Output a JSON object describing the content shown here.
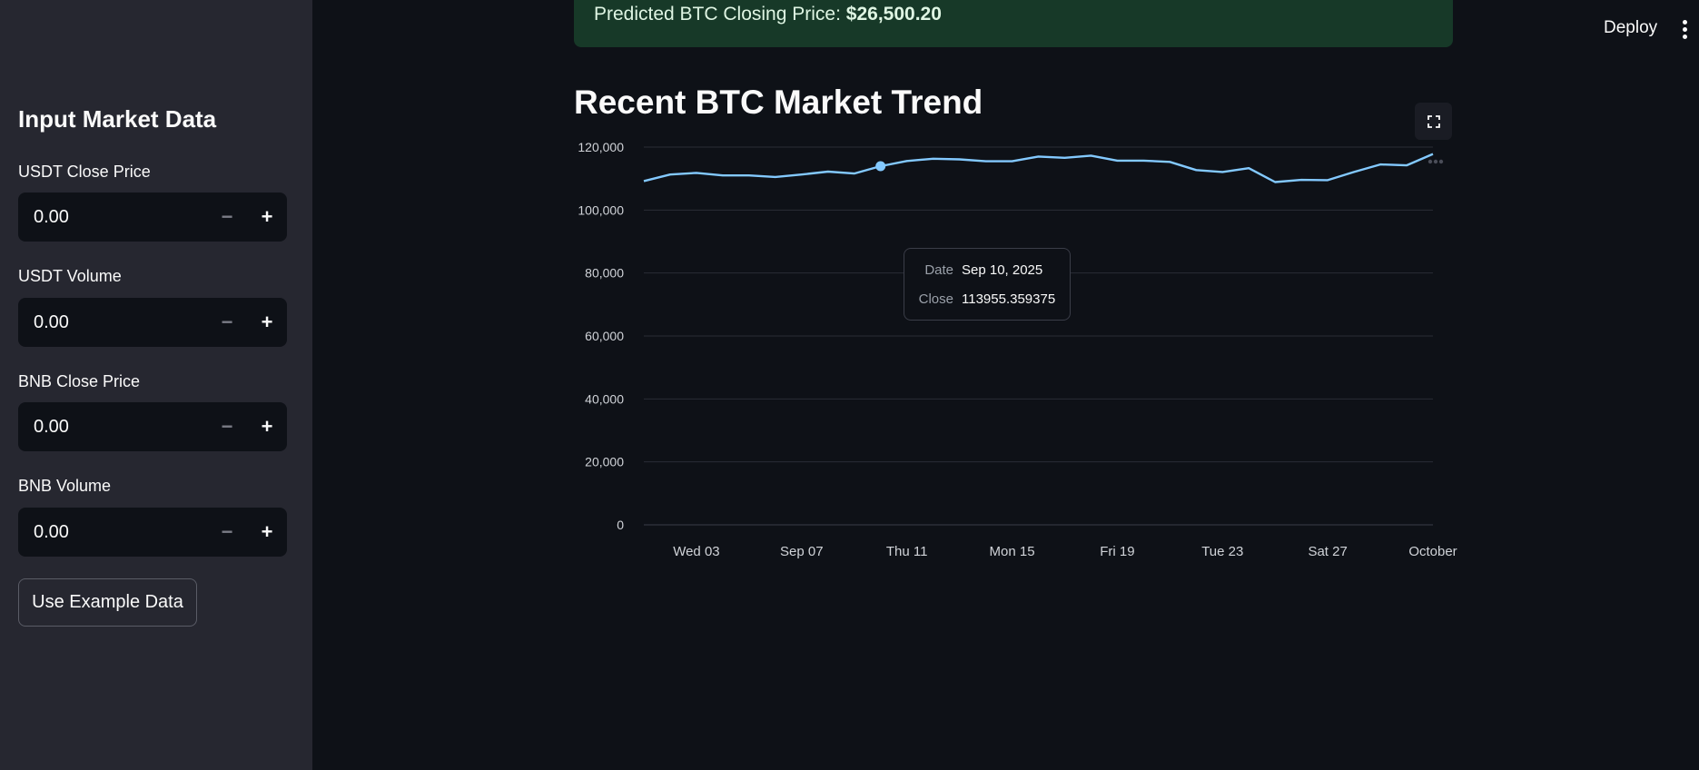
{
  "sidebar": {
    "title": "Input Market Data",
    "fields": [
      {
        "label": "USDT Close Price",
        "value": "0.00"
      },
      {
        "label": "USDT Volume",
        "value": "0.00"
      },
      {
        "label": "BNB Close Price",
        "value": "0.00"
      },
      {
        "label": "BNB Volume",
        "value": "0.00"
      }
    ],
    "minus_glyph": "−",
    "plus_glyph": "+",
    "example_button": "Use Example Data"
  },
  "header": {
    "deploy_label": "Deploy"
  },
  "banner": {
    "prefix": "Predicted BTC Closing Price: ",
    "value": "$26,500.20",
    "color": "#173928"
  },
  "section_title": "Recent BTC Market Trend",
  "tooltip": {
    "date_key": "Date",
    "date_value": "Sep 10, 2025",
    "close_key": "Close",
    "close_value": "113955.359375"
  },
  "chart_data": {
    "type": "line",
    "x": [
      "2025-09-01",
      "2025-09-02",
      "2025-09-03",
      "2025-09-04",
      "2025-09-05",
      "2025-09-06",
      "2025-09-07",
      "2025-09-08",
      "2025-09-09",
      "2025-09-10",
      "2025-09-11",
      "2025-09-12",
      "2025-09-13",
      "2025-09-14",
      "2025-09-15",
      "2025-09-16",
      "2025-09-17",
      "2025-09-18",
      "2025-09-19",
      "2025-09-20",
      "2025-09-21",
      "2025-09-22",
      "2025-09-23",
      "2025-09-24",
      "2025-09-25",
      "2025-09-26",
      "2025-09-27",
      "2025-09-28",
      "2025-09-29",
      "2025-09-30",
      "2025-10-01"
    ],
    "values": [
      109200,
      111300,
      111800,
      111000,
      111000,
      110500,
      111300,
      112200,
      111600,
      113955,
      115600,
      116300,
      116100,
      115500,
      115500,
      117000,
      116600,
      117300,
      115700,
      115700,
      115300,
      112700,
      112100,
      113300,
      108900,
      109600,
      109500,
      112100,
      114500,
      114200,
      117800
    ],
    "ylim": [
      0,
      120000
    ],
    "yticks": [
      0,
      20000,
      40000,
      60000,
      80000,
      100000,
      120000
    ],
    "ytick_labels": [
      "0",
      "20,000",
      "40,000",
      "60,000",
      "80,000",
      "100,000",
      "120,000"
    ],
    "xtick_labels": [
      "Wed 03",
      "Sep 07",
      "Thu 11",
      "Mon 15",
      "Fri 19",
      "Tue 23",
      "Sat 27",
      "October"
    ],
    "xtick_dates": [
      "2025-09-03",
      "2025-09-07",
      "2025-09-11",
      "2025-09-15",
      "2025-09-19",
      "2025-09-23",
      "2025-09-27",
      "2025-10-01"
    ],
    "highlight_date": "2025-09-10",
    "grid": true,
    "line_color": "#83c9ff"
  }
}
